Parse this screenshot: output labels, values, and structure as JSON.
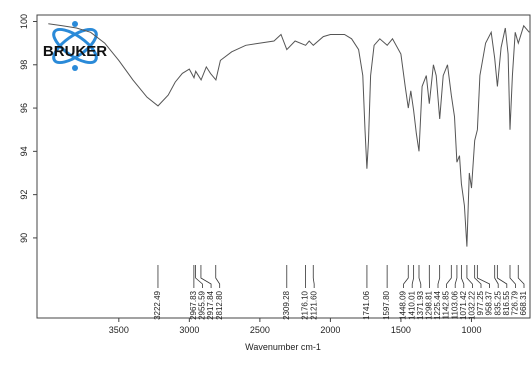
{
  "logo": "BRUKER",
  "chart_data": {
    "type": "line",
    "x_label": "Wavenumber cm-1",
    "xlim": [
      4080,
      585
    ],
    "ylim": [
      86.3,
      100.3
    ],
    "xticks": [
      3500,
      3000,
      2500,
      2000,
      1500,
      1000
    ],
    "yticks": [
      90,
      92,
      94,
      96,
      98,
      100
    ],
    "series": [
      {
        "color": "#555555",
        "x": [
          4000,
          3900,
          3800,
          3700,
          3600,
          3500,
          3400,
          3300,
          3222,
          3150,
          3100,
          3050,
          3000,
          2967,
          2955,
          2917,
          2880,
          2850,
          2812,
          2780,
          2700,
          2600,
          2500,
          2400,
          2350,
          2309,
          2250,
          2176,
          2150,
          2121,
          2050,
          2000,
          1900,
          1850,
          1800,
          1770,
          1755,
          1741,
          1730,
          1715,
          1690,
          1650,
          1597,
          1560,
          1500,
          1470,
          1448,
          1430,
          1410,
          1390,
          1372,
          1350,
          1320,
          1299,
          1270,
          1250,
          1225,
          1200,
          1170,
          1143,
          1120,
          1103,
          1085,
          1071,
          1050,
          1032,
          1015,
          1000,
          977,
          958,
          940,
          900,
          860,
          835,
          816,
          790,
          760,
          740,
          727,
          710,
          690,
          668,
          630,
          590
        ],
        "values": [
          99.9,
          99.8,
          99.7,
          99.5,
          99.0,
          98.2,
          97.3,
          96.5,
          96.1,
          96.6,
          97.2,
          97.6,
          97.8,
          97.4,
          97.7,
          97.3,
          97.9,
          97.6,
          97.3,
          98.2,
          98.6,
          98.9,
          99.0,
          99.1,
          99.4,
          98.7,
          99.1,
          98.9,
          99.1,
          98.9,
          99.3,
          99.4,
          99.4,
          99.2,
          98.7,
          97.5,
          95.0,
          93.2,
          94.5,
          97.5,
          98.9,
          99.2,
          98.9,
          99.2,
          98.5,
          97.0,
          96.0,
          96.8,
          95.9,
          94.8,
          94.0,
          97.0,
          97.5,
          96.2,
          98.0,
          97.5,
          95.5,
          97.5,
          98.0,
          96.6,
          95.6,
          93.5,
          93.8,
          92.5,
          91.5,
          89.6,
          93.0,
          92.3,
          94.5,
          95.0,
          97.5,
          99.0,
          99.5,
          98.3,
          97.0,
          98.8,
          99.7,
          98.5,
          95.0,
          97.5,
          99.5,
          99.0,
          99.8,
          99.5
        ]
      }
    ],
    "peaks": [
      3222.49,
      2967.83,
      2955.59,
      2917.84,
      {
        "value": 2812.8,
        "label": "2812.80"
      },
      2309.28,
      {
        "value": 2176.1,
        "label": "2176.10"
      },
      {
        "value": 2121.6,
        "label": "2121.60"
      },
      1741.06,
      {
        "value": 1597.8,
        "label": "1597.80"
      },
      1448.09,
      1410.01,
      1371.93,
      1298.81,
      1225.44,
      1142.85,
      1103.06,
      1071.42,
      1032.22,
      977.25,
      958.37,
      835.25,
      816.55,
      726.79,
      668.31
    ]
  }
}
